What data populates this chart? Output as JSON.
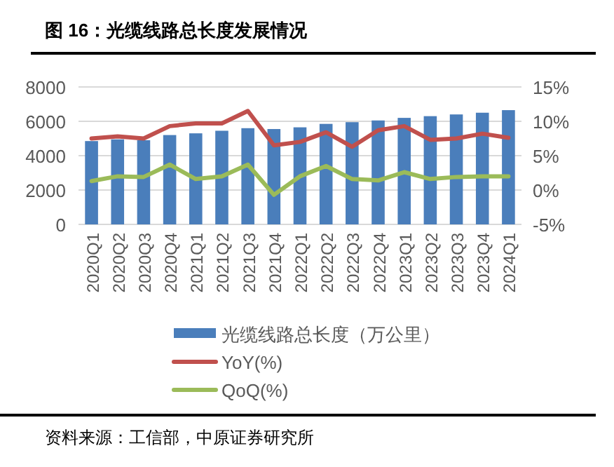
{
  "chart_data": {
    "type": "bar",
    "title": "图 16：光缆线路总长度发展情况",
    "categories": [
      "2020Q1",
      "2020Q2",
      "2020Q3",
      "2020Q4",
      "2021Q1",
      "2021Q2",
      "2021Q3",
      "2021Q4",
      "2022Q1",
      "2022Q2",
      "2022Q3",
      "2022Q4",
      "2023Q1",
      "2023Q2",
      "2023Q3",
      "2023Q4",
      "2024Q1"
    ],
    "series": [
      {
        "name": "光缆线路总长度（万公里）",
        "color": "#4a7ebb",
        "values": [
          4850,
          4950,
          4900,
          5200,
          5300,
          5450,
          5600,
          5550,
          5650,
          5850,
          5950,
          6050,
          6200,
          6300,
          6400,
          6500,
          6650
        ]
      },
      {
        "name": "YoY(%)",
        "type": "line",
        "axis": "y2",
        "color": "#c0504d",
        "values": [
          7.5,
          7.8,
          7.5,
          9.3,
          9.7,
          9.7,
          11.5,
          6.5,
          7.0,
          8.4,
          6.3,
          8.7,
          9.3,
          7.3,
          7.5,
          8.2,
          7.6
        ]
      },
      {
        "name": "QoQ(%)",
        "type": "line",
        "axis": "y2",
        "color": "#9bbb59",
        "values": [
          1.3,
          2.0,
          1.9,
          3.7,
          1.6,
          2.0,
          3.7,
          -0.7,
          2.0,
          3.5,
          1.6,
          1.4,
          2.6,
          1.6,
          1.9,
          2.0,
          2.0
        ]
      }
    ],
    "ylim": [
      0,
      8000
    ],
    "yticks": [
      0,
      2000,
      4000,
      6000,
      8000
    ],
    "y2lim": [
      -5,
      15
    ],
    "y2ticks": [
      {
        "value": -5,
        "label": "-5%"
      },
      {
        "value": 0,
        "label": "0%"
      },
      {
        "value": 5,
        "label": "5%"
      },
      {
        "value": 10,
        "label": "10%"
      },
      {
        "value": 15,
        "label": "15%"
      }
    ],
    "grid": "y",
    "legend": "bottom",
    "line_style": "solid",
    "marker": "none",
    "annotations": [
      "资料来源：工信部，中原证券研究所"
    ]
  }
}
